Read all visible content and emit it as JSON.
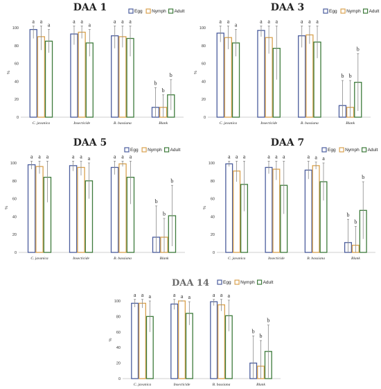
{
  "colors": {
    "Egg": "#4a5c9c",
    "Nymph": "#d8a14e",
    "Adult": "#3c7a3a",
    "error": "#8a8a8a",
    "axis": "#bfbfbf"
  },
  "chart_data": [
    {
      "type": "bar",
      "title": "DAA 1",
      "ylabel": "%",
      "ylim": [
        0,
        100
      ],
      "yticks": [
        0,
        20,
        40,
        60,
        80,
        100
      ],
      "categories": [
        "C. javanica",
        "Insecticide",
        "B. bassiana",
        "Blank"
      ],
      "legend_position": "top-right",
      "series": [
        {
          "name": "Egg",
          "values": [
            98,
            93,
            91,
            11
          ],
          "errors": [
            10,
            12,
            14,
            22
          ],
          "letters": [
            "a",
            "a",
            "a",
            "b"
          ]
        },
        {
          "name": "Nymph",
          "values": [
            90,
            95,
            90,
            11
          ],
          "errors": [
            15,
            7,
            12,
            14
          ],
          "letters": [
            "a",
            "a",
            "a",
            "b"
          ]
        },
        {
          "name": "Adult",
          "values": [
            85,
            83,
            88,
            25
          ],
          "errors": [
            13,
            15,
            20,
            17
          ],
          "letters": [
            "a",
            "a",
            "a",
            "b"
          ]
        }
      ]
    },
    {
      "type": "bar",
      "title": "DAA 3",
      "ylabel": "%",
      "ylim": [
        0,
        100
      ],
      "yticks": [
        0,
        20,
        40,
        60,
        80,
        100
      ],
      "categories": [
        "C. javanica",
        "Insecticide",
        "B. bassiana",
        "Blank"
      ],
      "legend_position": "top-right",
      "series": [
        {
          "name": "Egg",
          "values": [
            94,
            97,
            91,
            13
          ],
          "errors": [
            10,
            7,
            13,
            28
          ],
          "letters": [
            "a",
            "a",
            "a",
            "b"
          ]
        },
        {
          "name": "Nymph",
          "values": [
            89,
            89,
            92,
            11
          ],
          "errors": [
            13,
            18,
            10,
            30
          ],
          "letters": [
            "a",
            "a",
            "a",
            "b"
          ]
        },
        {
          "name": "Adult",
          "values": [
            83,
            77,
            84,
            39
          ],
          "errors": [
            15,
            35,
            18,
            32
          ],
          "letters": [
            "a",
            "a",
            "a",
            "b"
          ]
        }
      ]
    },
    {
      "type": "bar",
      "title": "DAA 5",
      "ylabel": "%",
      "ylim": [
        0,
        100
      ],
      "yticks": [
        0,
        20,
        40,
        60,
        80,
        100
      ],
      "categories": [
        "C. javanica",
        "Insecticide",
        "B. bassiana",
        "Blank"
      ],
      "legend_position": "top-right",
      "series": [
        {
          "name": "Egg",
          "values": [
            98,
            97,
            95,
            17
          ],
          "errors": [
            5,
            6,
            8,
            35
          ],
          "letters": [
            "a",
            "a",
            "a",
            "b"
          ]
        },
        {
          "name": "Nymph",
          "values": [
            96,
            95,
            99,
            17
          ],
          "errors": [
            8,
            9,
            3,
            21
          ],
          "letters": [
            "a",
            "a",
            "a",
            "b"
          ]
        },
        {
          "name": "Adult",
          "values": [
            84,
            80,
            84,
            41
          ],
          "errors": [
            28,
            20,
            30,
            34
          ],
          "letters": [
            "a",
            "a",
            "a",
            "b"
          ]
        }
      ]
    },
    {
      "type": "bar",
      "title": "DAA 7",
      "ylabel": "%",
      "ylim": [
        0,
        100
      ],
      "yticks": [
        0,
        20,
        40,
        60,
        80,
        100
      ],
      "categories": [
        "C. javanica",
        "Insecticide",
        "B. bassiana",
        "Blank"
      ],
      "legend_position": "top-right",
      "series": [
        {
          "name": "Egg",
          "values": [
            99,
            95,
            92,
            11
          ],
          "errors": [
            3,
            7,
            10,
            26
          ],
          "letters": [
            "a",
            "a",
            "a",
            "b"
          ]
        },
        {
          "name": "Nymph",
          "values": [
            91,
            93,
            97,
            8
          ],
          "errors": [
            12,
            12,
            4,
            21
          ],
          "letters": [
            "a",
            "a",
            "a",
            "b"
          ]
        },
        {
          "name": "Adult",
          "values": [
            76,
            75,
            79,
            47
          ],
          "errors": [
            30,
            32,
            21,
            32
          ],
          "letters": [
            "a",
            "a",
            "a",
            "b"
          ]
        }
      ]
    },
    {
      "type": "bar",
      "title": "DAA 14",
      "ylabel": "%",
      "ylim": [
        0,
        100
      ],
      "yticks": [
        0,
        20,
        40,
        60,
        80,
        100
      ],
      "categories": [
        "C. javanica",
        "Insecticide",
        "B. bassiana",
        "Blank"
      ],
      "legend_position": "top-right",
      "series": [
        {
          "name": "Egg",
          "values": [
            97,
            96,
            99,
            20
          ],
          "errors": [
            5,
            7,
            5,
            35
          ],
          "letters": [
            "a",
            "a",
            "a",
            "b"
          ]
        },
        {
          "name": "Nymph",
          "values": [
            97,
            100,
            95,
            16
          ],
          "errors": [
            6,
            0,
            8,
            33
          ],
          "letters": [
            "a",
            "a",
            "a",
            "b"
          ]
        },
        {
          "name": "Adult",
          "values": [
            80,
            84,
            81,
            35
          ],
          "errors": [
            20,
            15,
            20,
            34
          ],
          "letters": [
            "a",
            "a",
            "a",
            "b"
          ]
        }
      ]
    }
  ]
}
